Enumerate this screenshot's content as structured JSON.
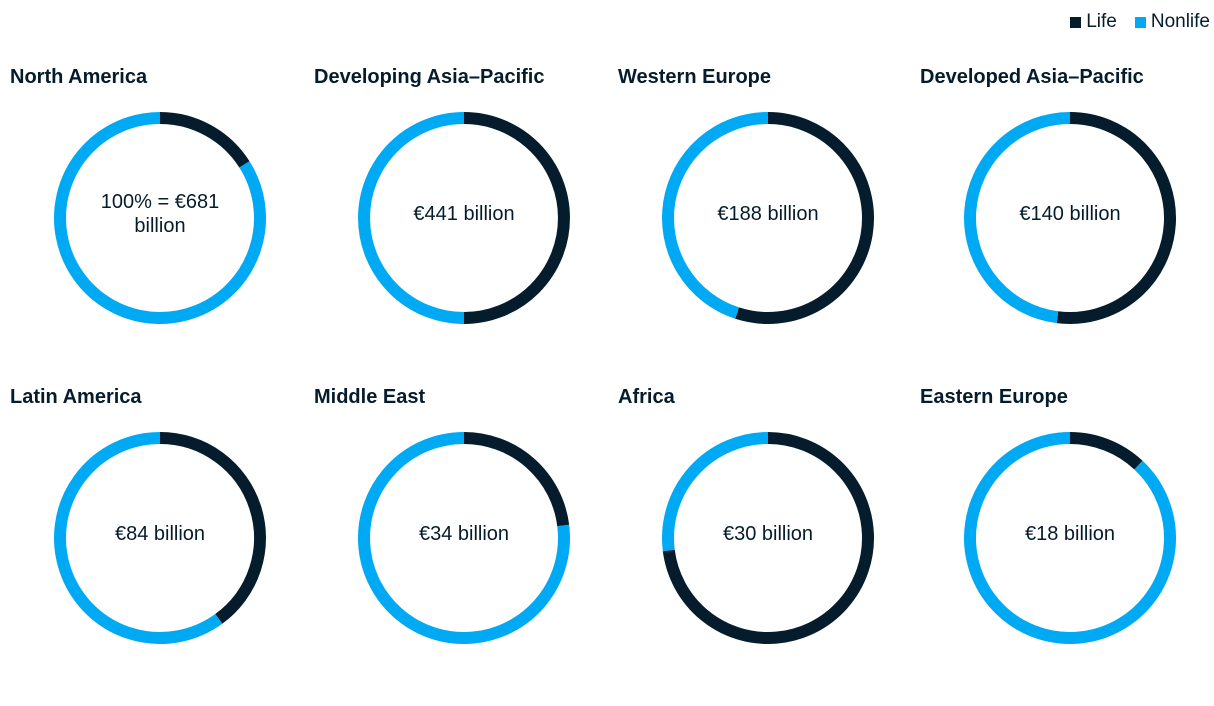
{
  "chart_data": [
    {
      "type": "donut",
      "title": "North America",
      "center_label": "100% = €681 billion",
      "categories": [
        "Life",
        "Nonlife"
      ],
      "values": [
        16,
        84
      ],
      "colors": [
        "#051c2c",
        "#00a9f4"
      ]
    },
    {
      "type": "donut",
      "title": "Developing Asia–Pacific",
      "center_label": "€441 billion",
      "categories": [
        "Life",
        "Nonlife"
      ],
      "values": [
        50,
        50
      ],
      "colors": [
        "#051c2c",
        "#00a9f4"
      ]
    },
    {
      "type": "donut",
      "title": "Western Europe",
      "center_label": "€188 billion",
      "categories": [
        "Life",
        "Nonlife"
      ],
      "values": [
        55,
        45
      ],
      "colors": [
        "#051c2c",
        "#00a9f4"
      ]
    },
    {
      "type": "donut",
      "title": "Developed Asia–Pacific",
      "center_label": "€140 billion",
      "categories": [
        "Life",
        "Nonlife"
      ],
      "values": [
        52,
        48
      ],
      "colors": [
        "#051c2c",
        "#00a9f4"
      ]
    },
    {
      "type": "donut",
      "title": "Latin America",
      "center_label": "€84 billion",
      "categories": [
        "Life",
        "Nonlife"
      ],
      "values": [
        40,
        60
      ],
      "colors": [
        "#051c2c",
        "#00a9f4"
      ]
    },
    {
      "type": "donut",
      "title": "Middle East",
      "center_label": "€34 billion",
      "categories": [
        "Life",
        "Nonlife"
      ],
      "values": [
        23,
        77
      ],
      "colors": [
        "#051c2c",
        "#00a9f4"
      ]
    },
    {
      "type": "donut",
      "title": "Africa",
      "center_label": "€30 billion",
      "categories": [
        "Life",
        "Nonlife"
      ],
      "values": [
        73,
        27
      ],
      "colors": [
        "#051c2c",
        "#00a9f4"
      ]
    },
    {
      "type": "donut",
      "title": "Eastern Europe",
      "center_label": "€18 billion",
      "categories": [
        "Life",
        "Nonlife"
      ],
      "values": [
        12,
        88
      ],
      "colors": [
        "#051c2c",
        "#00a9f4"
      ]
    }
  ]
}
